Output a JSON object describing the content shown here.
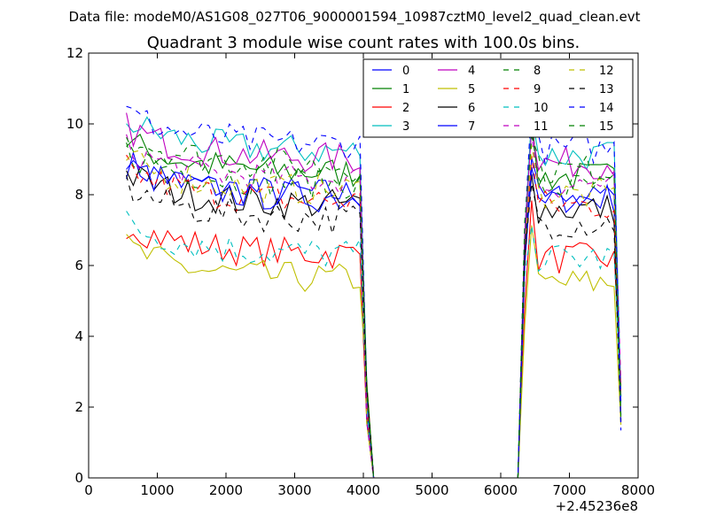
{
  "header": {
    "data_file": "Data file: modeM0/AS1G08_027T06_9000001594_10987cztM0_level2_quad_clean.evt"
  },
  "chart_data": {
    "type": "line",
    "title": "Quadrant 3 module wise count rates with 100.0s bins.",
    "xlabel": "",
    "ylabel": "",
    "x_offset_label": "+2.45236e8",
    "xlim": [
      0,
      8000
    ],
    "ylim": [
      0,
      12
    ],
    "x_ticks": [
      "0",
      "1000",
      "2000",
      "3000",
      "4000",
      "5000",
      "6000",
      "7000",
      "8000"
    ],
    "y_ticks": [
      "0",
      "2",
      "4",
      "6",
      "8",
      "10",
      "12"
    ],
    "grid": false,
    "legend_position": "top-right",
    "segments_x": [
      [
        550,
        650,
        750,
        850,
        950,
        1050,
        1150,
        1250,
        1350,
        1450,
        1550,
        1650,
        1750,
        1850,
        1950,
        2050,
        2150,
        2250,
        2350,
        2450,
        2550,
        2650,
        2750,
        2850,
        2950,
        3050,
        3150,
        3250,
        3350,
        3450,
        3550,
        3650,
        3750,
        3850,
        3950,
        4050,
        4150,
        4250
      ],
      [
        6250,
        6350,
        6450,
        6550,
        6650,
        6750,
        6850,
        6950,
        7050,
        7150,
        7250,
        7350,
        7450,
        7550,
        7650,
        7750
      ]
    ],
    "series": [
      {
        "name": "0",
        "color": "#0000ff",
        "dash": "solid",
        "base": 8.0
      },
      {
        "name": "1",
        "color": "#008000",
        "dash": "solid",
        "base": 8.6
      },
      {
        "name": "2",
        "color": "#ff0000",
        "dash": "solid",
        "base": 6.3
      },
      {
        "name": "3",
        "color": "#00bfbf",
        "dash": "solid",
        "base": 9.2
      },
      {
        "name": "4",
        "color": "#bf00bf",
        "dash": "solid",
        "base": 9.0
      },
      {
        "name": "5",
        "color": "#bfbf00",
        "dash": "solid",
        "base": 5.6
      },
      {
        "name": "6",
        "color": "#000000",
        "dash": "solid",
        "base": 7.7
      },
      {
        "name": "7",
        "color": "#0000ff",
        "dash": "solid",
        "base": 7.9
      },
      {
        "name": "8",
        "color": "#008000",
        "dash": "dashed",
        "base": 8.3
      },
      {
        "name": "9",
        "color": "#ff0000",
        "dash": "dashed",
        "base": 7.8
      },
      {
        "name": "10",
        "color": "#00bfbf",
        "dash": "dashed",
        "base": 6.3
      },
      {
        "name": "11",
        "color": "#bf00bf",
        "dash": "dashed",
        "base": 8.4
      },
      {
        "name": "12",
        "color": "#bfbf00",
        "dash": "dashed",
        "base": 8.1
      },
      {
        "name": "13",
        "color": "#000000",
        "dash": "dashed",
        "base": 7.3
      },
      {
        "name": "14",
        "color": "#0000ff",
        "dash": "dashed",
        "base": 9.4
      },
      {
        "name": "15",
        "color": "#008000",
        "dash": "dashed",
        "base": 8.8
      }
    ]
  }
}
